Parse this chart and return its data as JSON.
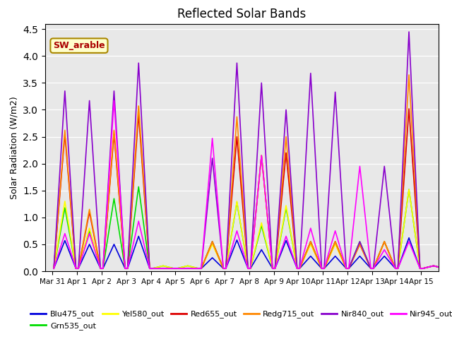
{
  "title": "Reflected Solar Bands",
  "ylabel": "Solar Radiation (W/m2)",
  "annotation": "SW_arable",
  "plot_bg_color": "#e8e8e8",
  "fig_bg_color": "#ffffff",
  "ylim": [
    0,
    4.6
  ],
  "yticks": [
    0.0,
    0.5,
    1.0,
    1.5,
    2.0,
    2.5,
    3.0,
    3.5,
    4.0,
    4.5
  ],
  "series_order": [
    "Blu475_out",
    "Grn535_out",
    "Yel580_out",
    "Red655_out",
    "Redg715_out",
    "Nir840_out",
    "Nir945_out"
  ],
  "series": {
    "Blu475_out": {
      "color": "#0000dd",
      "lw": 1.2
    },
    "Grn535_out": {
      "color": "#00dd00",
      "lw": 1.2
    },
    "Yel580_out": {
      "color": "#ffff00",
      "lw": 1.2
    },
    "Red655_out": {
      "color": "#dd0000",
      "lw": 1.2
    },
    "Redg715_out": {
      "color": "#ff8800",
      "lw": 1.2
    },
    "Nir840_out": {
      "color": "#8800cc",
      "lw": 1.2
    },
    "Nir945_out": {
      "color": "#ff00ff",
      "lw": 1.2
    }
  },
  "xtick_labels": [
    "Mar 31",
    "Apr 1",
    "Apr 2",
    "Apr 3",
    "Apr 4",
    "Apr 5",
    "Apr 6",
    "Apr 7",
    "Apr 8",
    "Apr 9",
    "Apr 10",
    "Apr 11",
    "Apr 12",
    "Apr 13",
    "Apr 14",
    "Apr 15"
  ],
  "num_days": 16,
  "data": {
    "Blu475_out": [
      0.05,
      0.57,
      0.05,
      0.05,
      0.5,
      0.05,
      0.05,
      0.5,
      0.05,
      0.05,
      0.65,
      0.05,
      0.05,
      0.05,
      0.05,
      0.05,
      0.05,
      0.05,
      0.05,
      0.25,
      0.05,
      0.05,
      0.58,
      0.05,
      0.05,
      0.4,
      0.05,
      0.05,
      0.57,
      0.05,
      0.05,
      0.28,
      0.05,
      0.05,
      0.28,
      0.05,
      0.05,
      0.28,
      0.05,
      0.05,
      0.28,
      0.05,
      0.05,
      0.62,
      0.05,
      0.05,
      0.1,
      0.05
    ],
    "Grn535_out": [
      0.05,
      1.18,
      0.05,
      0.05,
      0.75,
      0.05,
      0.05,
      1.35,
      0.05,
      0.05,
      1.57,
      0.05,
      0.05,
      0.1,
      0.05,
      0.05,
      0.1,
      0.05,
      0.05,
      0.55,
      0.05,
      0.05,
      1.28,
      0.05,
      0.05,
      0.85,
      0.05,
      0.05,
      1.18,
      0.05,
      0.05,
      0.55,
      0.05,
      0.05,
      0.55,
      0.05,
      0.05,
      0.55,
      0.05,
      0.05,
      0.55,
      0.05,
      0.05,
      1.52,
      0.05,
      0.05,
      0.1,
      0.05
    ],
    "Yel580_out": [
      0.05,
      1.3,
      0.05,
      0.05,
      0.8,
      0.05,
      0.05,
      2.6,
      0.05,
      0.05,
      3.07,
      0.05,
      0.05,
      0.1,
      0.05,
      0.05,
      0.1,
      0.05,
      0.05,
      0.5,
      0.05,
      0.05,
      1.3,
      0.05,
      0.05,
      0.9,
      0.05,
      0.05,
      1.22,
      0.05,
      0.05,
      0.5,
      0.05,
      0.05,
      0.5,
      0.05,
      0.05,
      0.5,
      0.05,
      0.05,
      0.55,
      0.05,
      0.05,
      1.52,
      0.05,
      0.05,
      0.1,
      0.05
    ],
    "Red655_out": [
      0.05,
      2.55,
      0.05,
      0.05,
      1.1,
      0.05,
      0.05,
      2.55,
      0.05,
      0.05,
      2.92,
      0.05,
      0.05,
      0.05,
      0.05,
      0.05,
      0.05,
      0.05,
      0.05,
      0.55,
      0.05,
      0.05,
      2.5,
      0.05,
      0.05,
      2.15,
      0.05,
      0.05,
      2.2,
      0.05,
      0.05,
      0.55,
      0.05,
      0.05,
      0.55,
      0.05,
      0.05,
      0.5,
      0.05,
      0.05,
      0.55,
      0.05,
      0.05,
      3.02,
      0.05,
      0.05,
      0.1,
      0.05
    ],
    "Redg715_out": [
      0.05,
      2.62,
      0.05,
      0.05,
      1.15,
      0.05,
      0.05,
      2.62,
      0.05,
      0.05,
      3.07,
      0.05,
      0.05,
      0.05,
      0.05,
      0.05,
      0.05,
      0.05,
      0.05,
      0.55,
      0.05,
      0.05,
      2.87,
      0.05,
      0.05,
      2.15,
      0.05,
      0.05,
      2.5,
      0.05,
      0.05,
      0.55,
      0.05,
      0.05,
      0.55,
      0.05,
      0.05,
      0.5,
      0.05,
      0.05,
      0.55,
      0.05,
      0.05,
      3.65,
      0.05,
      0.05,
      0.1,
      0.05
    ],
    "Nir840_out": [
      0.05,
      3.35,
      0.05,
      0.05,
      3.17,
      0.05,
      0.05,
      3.35,
      0.05,
      0.05,
      3.87,
      0.05,
      0.05,
      0.05,
      0.05,
      0.05,
      0.05,
      0.05,
      0.05,
      2.1,
      0.05,
      0.05,
      3.87,
      0.05,
      0.05,
      3.5,
      0.05,
      0.05,
      3.0,
      0.05,
      0.05,
      3.68,
      0.05,
      0.05,
      3.33,
      0.05,
      0.05,
      0.55,
      0.05,
      0.05,
      1.95,
      0.05,
      0.05,
      4.45,
      0.05,
      0.05,
      0.1,
      0.05
    ],
    "Nir945_out": [
      0.05,
      0.7,
      0.05,
      0.05,
      0.7,
      0.05,
      0.05,
      3.17,
      0.05,
      0.05,
      0.93,
      0.05,
      0.05,
      0.05,
      0.05,
      0.05,
      0.05,
      0.05,
      0.05,
      2.47,
      0.05,
      0.05,
      0.75,
      0.05,
      0.05,
      2.15,
      0.05,
      0.05,
      0.65,
      0.05,
      0.05,
      0.8,
      0.05,
      0.05,
      0.75,
      0.05,
      0.05,
      1.95,
      0.05,
      0.05,
      0.4,
      0.05,
      0.05,
      0.55,
      0.05,
      0.05,
      0.1,
      0.05
    ]
  }
}
